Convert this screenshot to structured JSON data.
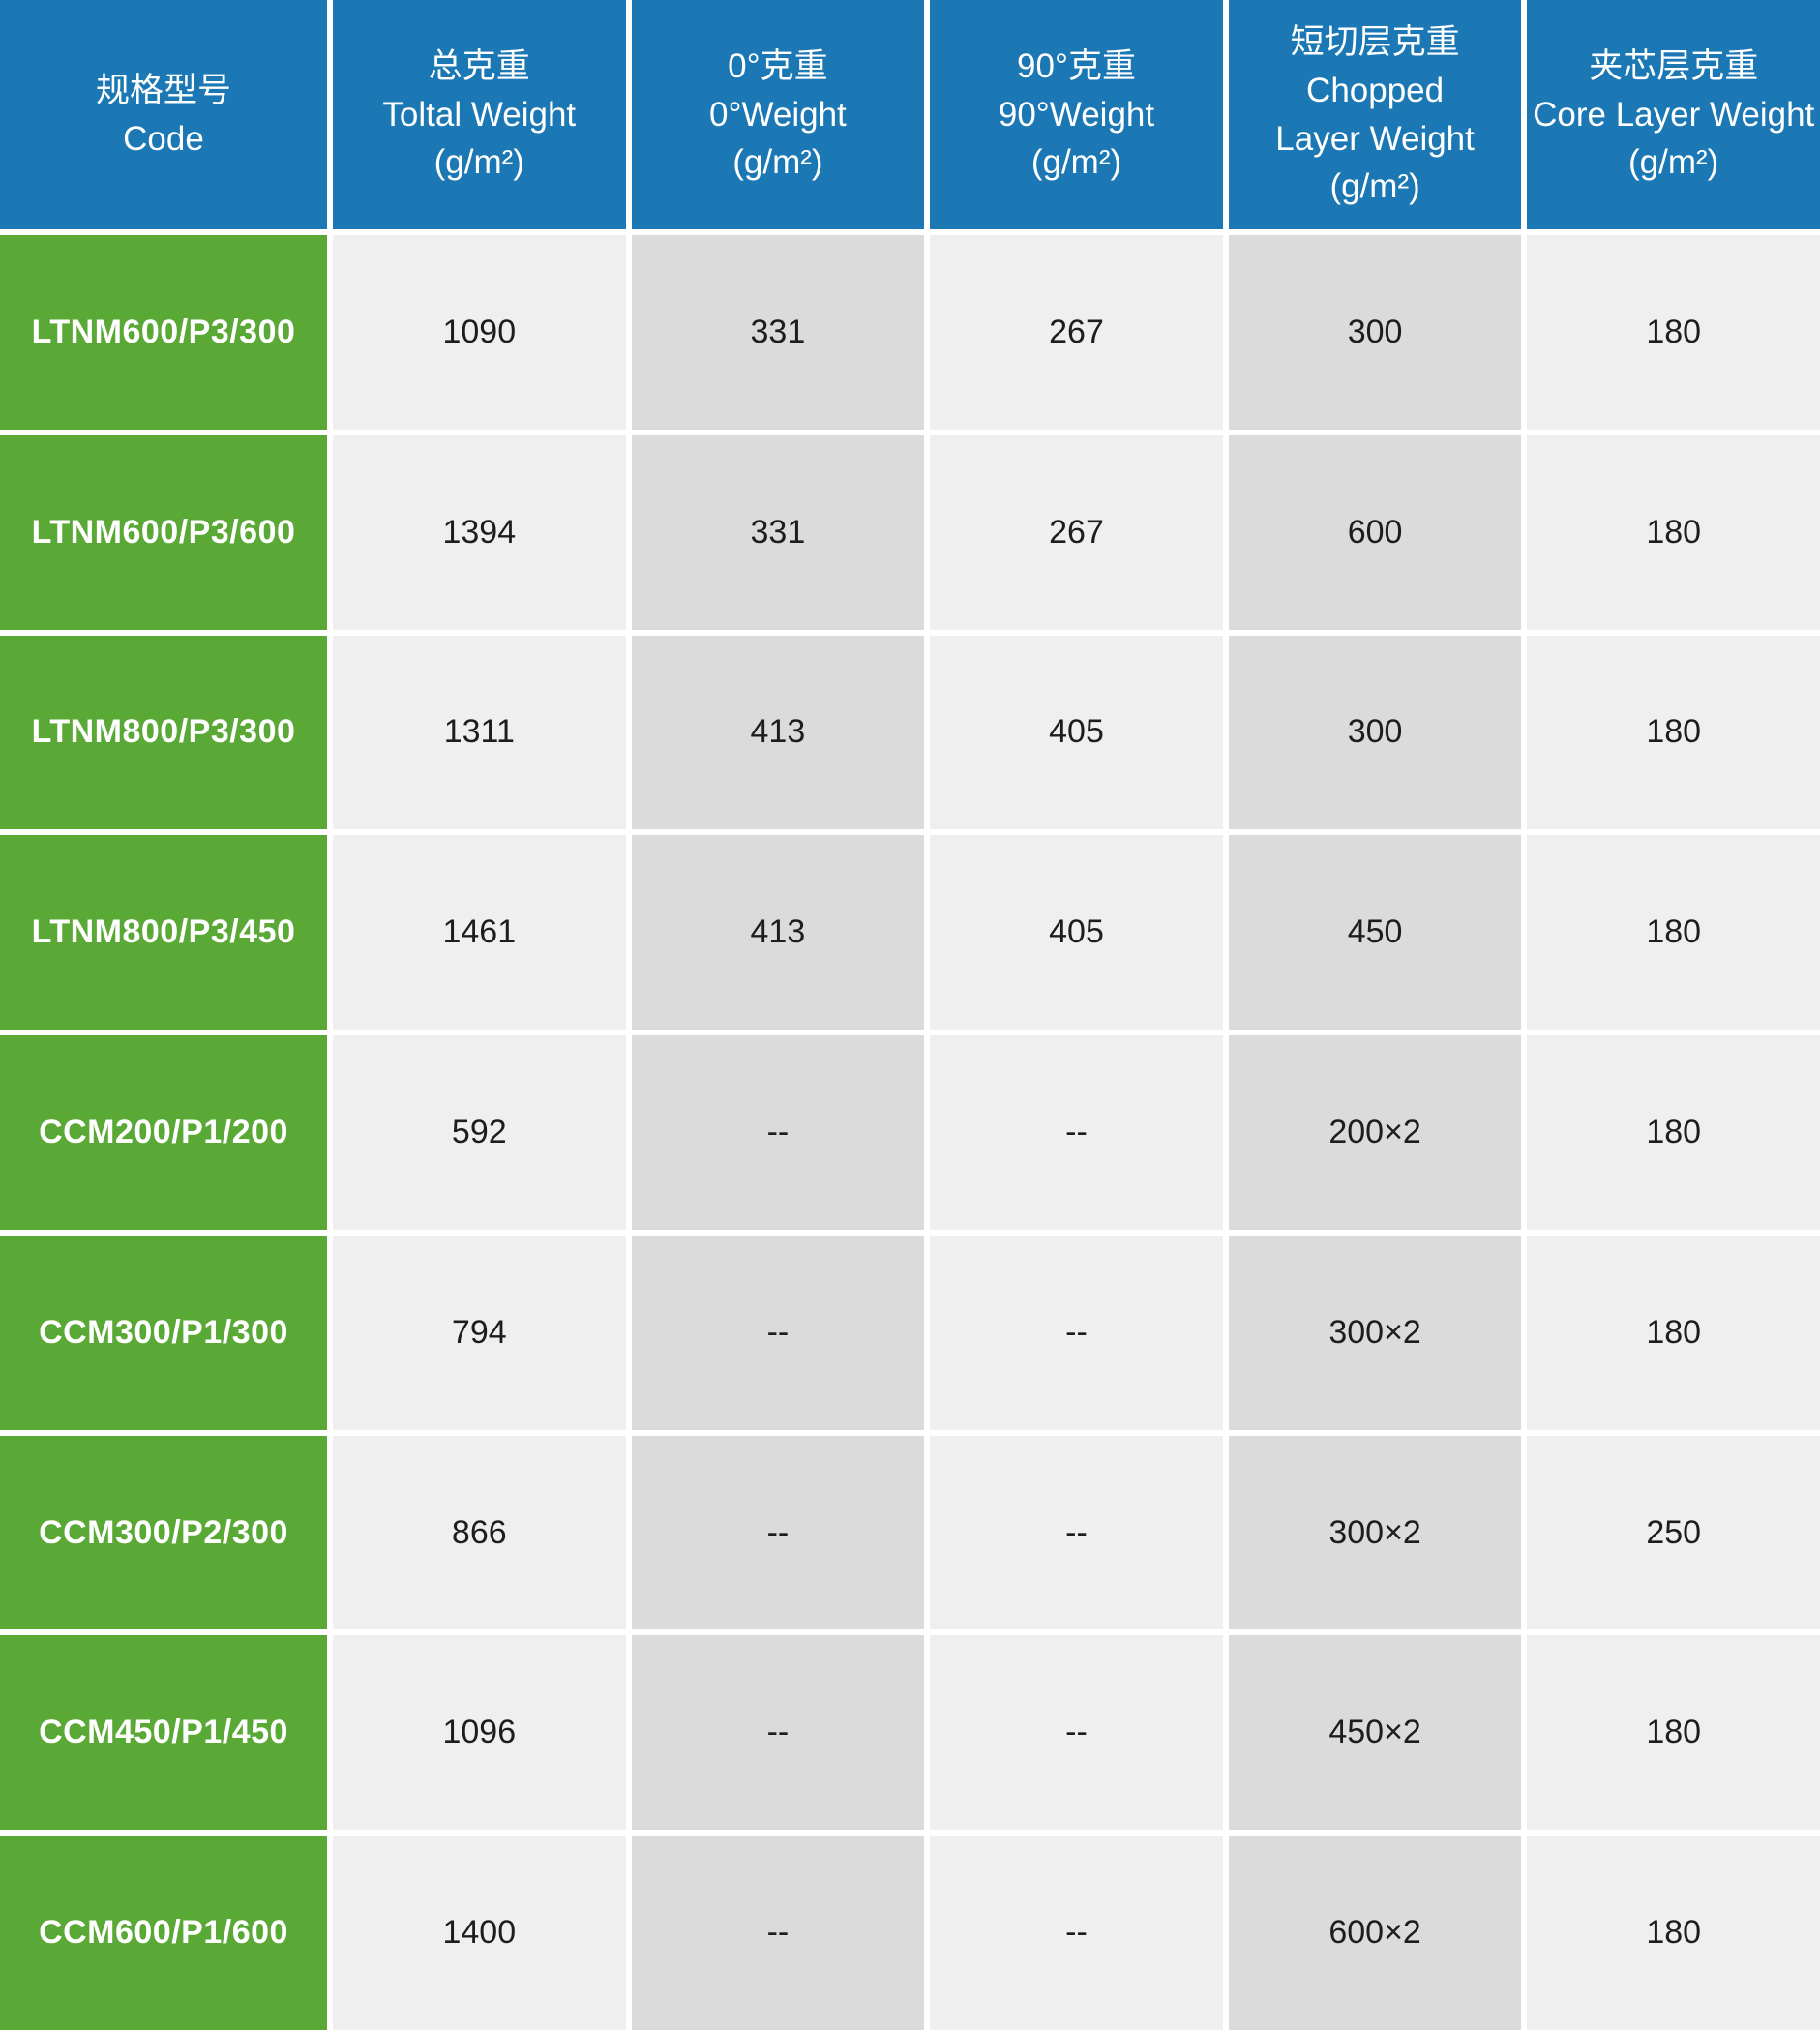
{
  "colors": {
    "header-blue": "#1b78b4",
    "code-green": "#5aa936",
    "cell-light": "#efefef",
    "cell-dark": "#dbdbdb",
    "text-dark": "#1d1d1b",
    "gap-white": "#ffffff"
  },
  "table": {
    "header": {
      "columns": [
        {
          "zh": "规格型号",
          "en": "Code",
          "unit": ""
        },
        {
          "zh": "总克重",
          "en": "Toltal Weight",
          "unit": "(g/m²)"
        },
        {
          "zh": "0°克重",
          "en": "0°Weight",
          "unit": "(g/m²)"
        },
        {
          "zh": "90°克重",
          "en": "90°Weight",
          "unit": "(g/m²)"
        },
        {
          "zh": "短切层克重",
          "en": "Chopped\nLayer Weight",
          "unit": "(g/m²)"
        },
        {
          "zh": "夹芯层克重",
          "en": "Core Layer Weight",
          "unit": "(g/m²)"
        }
      ]
    },
    "rows": [
      {
        "code": "LTNM600/P3/300",
        "total": "1090",
        "w0": "331",
        "w90": "267",
        "chopped": "300",
        "core": "180"
      },
      {
        "code": "LTNM600/P3/600",
        "total": "1394",
        "w0": "331",
        "w90": "267",
        "chopped": "600",
        "core": "180"
      },
      {
        "code": "LTNM800/P3/300",
        "total": "1311",
        "w0": "413",
        "w90": "405",
        "chopped": "300",
        "core": "180"
      },
      {
        "code": "LTNM800/P3/450",
        "total": "1461",
        "w0": "413",
        "w90": "405",
        "chopped": "450",
        "core": "180"
      },
      {
        "code": "CCM200/P1/200",
        "total": "592",
        "w0": "--",
        "w90": "--",
        "chopped": "200×2",
        "core": "180"
      },
      {
        "code": "CCM300/P1/300",
        "total": "794",
        "w0": "--",
        "w90": "--",
        "chopped": "300×2",
        "core": "180"
      },
      {
        "code": "CCM300/P2/300",
        "total": "866",
        "w0": "--",
        "w90": "--",
        "chopped": "300×2",
        "core": "250"
      },
      {
        "code": "CCM450/P1/450",
        "total": "1096",
        "w0": "--",
        "w90": "--",
        "chopped": "450×2",
        "core": "180"
      },
      {
        "code": "CCM600/P1/600",
        "total": "1400",
        "w0": "--",
        "w90": "--",
        "chopped": "600×2",
        "core": "180"
      }
    ]
  }
}
